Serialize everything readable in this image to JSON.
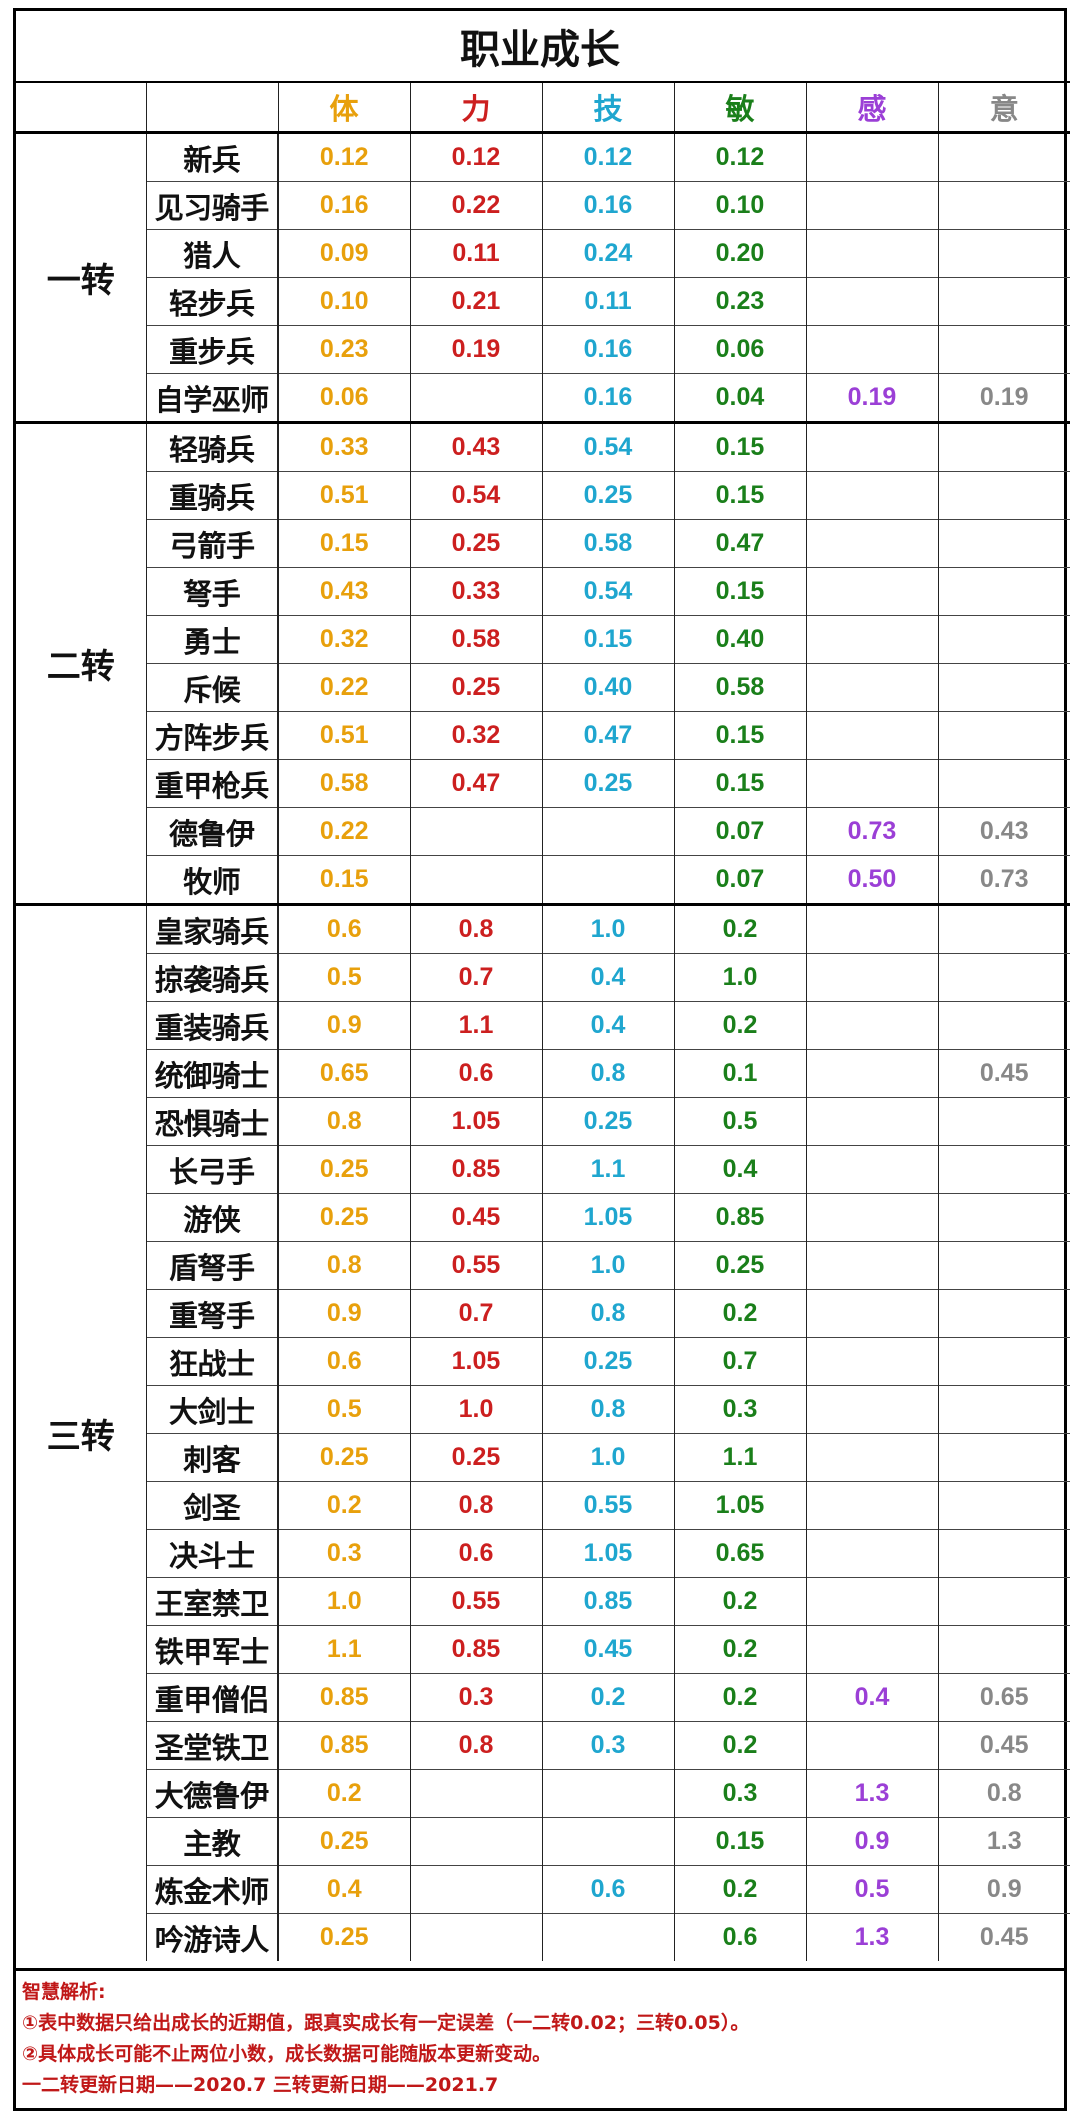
{
  "title": "职业成长",
  "headers": [
    "体",
    "力",
    "技",
    "敏",
    "感",
    "意"
  ],
  "colors": {
    "体": "#e8a00c",
    "力": "#cc1f1f",
    "技": "#1fa6cf",
    "敏": "#1a7f1a",
    "感": "#9b3fd6",
    "意": "#888888",
    "notes": "#c01818"
  },
  "groups": [
    {
      "name": "一转",
      "rows": [
        {
          "job": "新兵",
          "v": [
            "0.12",
            "0.12",
            "0.12",
            "0.12",
            "",
            ""
          ]
        },
        {
          "job": "见习骑手",
          "v": [
            "0.16",
            "0.22",
            "0.16",
            "0.10",
            "",
            ""
          ]
        },
        {
          "job": "猎人",
          "v": [
            "0.09",
            "0.11",
            "0.24",
            "0.20",
            "",
            ""
          ]
        },
        {
          "job": "轻步兵",
          "v": [
            "0.10",
            "0.21",
            "0.11",
            "0.23",
            "",
            ""
          ]
        },
        {
          "job": "重步兵",
          "v": [
            "0.23",
            "0.19",
            "0.16",
            "0.06",
            "",
            ""
          ]
        },
        {
          "job": "自学巫师",
          "v": [
            "0.06",
            "",
            "0.16",
            "0.04",
            "0.19",
            "0.19"
          ]
        }
      ]
    },
    {
      "name": "二转",
      "rows": [
        {
          "job": "轻骑兵",
          "v": [
            "0.33",
            "0.43",
            "0.54",
            "0.15",
            "",
            ""
          ]
        },
        {
          "job": "重骑兵",
          "v": [
            "0.51",
            "0.54",
            "0.25",
            "0.15",
            "",
            ""
          ]
        },
        {
          "job": "弓箭手",
          "v": [
            "0.15",
            "0.25",
            "0.58",
            "0.47",
            "",
            ""
          ]
        },
        {
          "job": "弩手",
          "v": [
            "0.43",
            "0.33",
            "0.54",
            "0.15",
            "",
            ""
          ]
        },
        {
          "job": "勇士",
          "v": [
            "0.32",
            "0.58",
            "0.15",
            "0.40",
            "",
            ""
          ]
        },
        {
          "job": "斥候",
          "v": [
            "0.22",
            "0.25",
            "0.40",
            "0.58",
            "",
            ""
          ]
        },
        {
          "job": "方阵步兵",
          "v": [
            "0.51",
            "0.32",
            "0.47",
            "0.15",
            "",
            ""
          ]
        },
        {
          "job": "重甲枪兵",
          "v": [
            "0.58",
            "0.47",
            "0.25",
            "0.15",
            "",
            ""
          ]
        },
        {
          "job": "德鲁伊",
          "v": [
            "0.22",
            "",
            "",
            "0.07",
            "0.73",
            "0.43"
          ]
        },
        {
          "job": "牧师",
          "v": [
            "0.15",
            "",
            "",
            "0.07",
            "0.50",
            "0.73"
          ]
        }
      ]
    },
    {
      "name": "三转",
      "rows": [
        {
          "job": "皇家骑兵",
          "v": [
            "0.6",
            "0.8",
            "1.0",
            "0.2",
            "",
            ""
          ]
        },
        {
          "job": "掠袭骑兵",
          "v": [
            "0.5",
            "0.7",
            "0.4",
            "1.0",
            "",
            ""
          ]
        },
        {
          "job": "重装骑兵",
          "v": [
            "0.9",
            "1.1",
            "0.4",
            "0.2",
            "",
            ""
          ]
        },
        {
          "job": "统御骑士",
          "v": [
            "0.65",
            "0.6",
            "0.8",
            "0.1",
            "",
            "0.45"
          ]
        },
        {
          "job": "恐惧骑士",
          "v": [
            "0.8",
            "1.05",
            "0.25",
            "0.5",
            "",
            ""
          ]
        },
        {
          "job": "长弓手",
          "v": [
            "0.25",
            "0.85",
            "1.1",
            "0.4",
            "",
            ""
          ]
        },
        {
          "job": "游侠",
          "v": [
            "0.25",
            "0.45",
            "1.05",
            "0.85",
            "",
            ""
          ]
        },
        {
          "job": "盾弩手",
          "v": [
            "0.8",
            "0.55",
            "1.0",
            "0.25",
            "",
            ""
          ]
        },
        {
          "job": "重弩手",
          "v": [
            "0.9",
            "0.7",
            "0.8",
            "0.2",
            "",
            ""
          ]
        },
        {
          "job": "狂战士",
          "v": [
            "0.6",
            "1.05",
            "0.25",
            "0.7",
            "",
            ""
          ]
        },
        {
          "job": "大剑士",
          "v": [
            "0.5",
            "1.0",
            "0.8",
            "0.3",
            "",
            ""
          ]
        },
        {
          "job": "刺客",
          "v": [
            "0.25",
            "0.25",
            "1.0",
            "1.1",
            "",
            ""
          ]
        },
        {
          "job": "剑圣",
          "v": [
            "0.2",
            "0.8",
            "0.55",
            "1.05",
            "",
            ""
          ]
        },
        {
          "job": "决斗士",
          "v": [
            "0.3",
            "0.6",
            "1.05",
            "0.65",
            "",
            ""
          ]
        },
        {
          "job": "王室禁卫",
          "v": [
            "1.0",
            "0.55",
            "0.85",
            "0.2",
            "",
            ""
          ]
        },
        {
          "job": "铁甲军士",
          "v": [
            "1.1",
            "0.85",
            "0.45",
            "0.2",
            "",
            ""
          ]
        },
        {
          "job": "重甲僧侣",
          "v": [
            "0.85",
            "0.3",
            "0.2",
            "0.2",
            "0.4",
            "0.65"
          ]
        },
        {
          "job": "圣堂铁卫",
          "v": [
            "0.85",
            "0.8",
            "0.3",
            "0.2",
            "",
            "0.45"
          ]
        },
        {
          "job": "大德鲁伊",
          "v": [
            "0.2",
            "",
            "",
            "0.3",
            "1.3",
            "0.8"
          ]
        },
        {
          "job": "主教",
          "v": [
            "0.25",
            "",
            "",
            "0.15",
            "0.9",
            "1.3"
          ]
        },
        {
          "job": "炼金术师",
          "v": [
            "0.4",
            "",
            "0.6",
            "0.2",
            "0.5",
            "0.9"
          ]
        },
        {
          "job": "吟游诗人",
          "v": [
            "0.25",
            "",
            "",
            "0.6",
            "1.3",
            "0.45"
          ]
        }
      ]
    }
  ],
  "notes": [
    "智慧解析:",
    "①表中数据只给出成长的近期值，跟真实成长有一定误差（一二转0.02；三转0.05）。",
    "②具体成长可能不止两位小数，成长数据可能随版本更新变动。",
    "一二转更新日期——2020.7 三转更新日期——2021.7"
  ]
}
